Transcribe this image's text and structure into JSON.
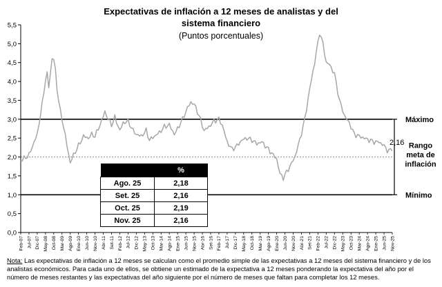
{
  "chart_data": {
    "type": "line",
    "title_line1": "Expectativas de inflación a 12 meses de analistas y del",
    "title_line2": "sistema financiero",
    "subtitle": "(Puntos porcentuales)",
    "ylim": [
      0,
      5.5
    ],
    "y_ticks": [
      "0,0",
      "0,5",
      "1,0",
      "1,5",
      "2,0",
      "2,5",
      "3,0",
      "3,5",
      "4,0",
      "4,5",
      "5,0",
      "5,5"
    ],
    "x_tick_labels": [
      "Feb-07",
      "Jul-07",
      "Dic-07",
      "May-08",
      "Oct-08",
      "Mar-09",
      "Ago-09",
      "Ene-10",
      "Jun-10",
      "Nov-10",
      "Abr-11",
      "Set-11",
      "Feb-12",
      "Jul-12",
      "Dic-12",
      "May-13",
      "Oct-13",
      "Mar-14",
      "Ago-14",
      "Ene-15",
      "Jun-15",
      "Nov-15",
      "Abr-16",
      "Set-16",
      "Feb-17",
      "Jul-17",
      "Dic-17",
      "May-18",
      "Oct-18",
      "Mar-19",
      "Ago-19",
      "Ene-20",
      "Jun-20",
      "Nov-20",
      "Abr-21",
      "Set-21",
      "Feb-22",
      "Jul-22",
      "Dic-22",
      "May-23",
      "Oct-23",
      "Mar-24",
      "Ago-24",
      "Ene-25",
      "Jun-25",
      "Nov-25"
    ],
    "series": [
      {
        "name": "Expectativa de inflación a 12 meses",
        "keypoints": [
          [
            "Feb-07",
            1.9
          ],
          [
            "Jul-07",
            2.05
          ],
          [
            "Dic-07",
            2.6
          ],
          [
            "Mar-08",
            3.4
          ],
          [
            "May-08",
            4.05
          ],
          [
            "Jun-08",
            4.2
          ],
          [
            "Jul-08",
            3.85
          ],
          [
            "Set-08",
            4.6
          ],
          [
            "Oct-08",
            4.6
          ],
          [
            "Nov-08",
            4.3
          ],
          [
            "Dic-08",
            3.8
          ],
          [
            "Feb-09",
            3.2
          ],
          [
            "Abr-09",
            2.8
          ],
          [
            "Jun-09",
            2.3
          ],
          [
            "Ago-09",
            1.85
          ],
          [
            "Oct-09",
            2.05
          ],
          [
            "Ene-10",
            2.3
          ],
          [
            "Abr-10",
            2.55
          ],
          [
            "Jul-10",
            2.5
          ],
          [
            "Set-10",
            2.6
          ],
          [
            "Nov-10",
            2.55
          ],
          [
            "Feb-11",
            2.85
          ],
          [
            "May-11",
            3.2
          ],
          [
            "Jul-11",
            3.0
          ],
          [
            "Set-11",
            2.85
          ],
          [
            "Nov-11",
            3.05
          ],
          [
            "Feb-12",
            2.7
          ],
          [
            "Abr-12",
            2.9
          ],
          [
            "Jul-12",
            2.95
          ],
          [
            "Oct-12",
            2.7
          ],
          [
            "Dic-12",
            2.6
          ],
          [
            "Mar-13",
            2.55
          ],
          [
            "Jun-13",
            2.7
          ],
          [
            "Ago-13",
            2.45
          ],
          [
            "Nov-13",
            2.55
          ],
          [
            "Feb-14",
            2.65
          ],
          [
            "May-14",
            2.8
          ],
          [
            "Ago-14",
            2.85
          ],
          [
            "Nov-14",
            2.6
          ],
          [
            "Ene-15",
            2.75
          ],
          [
            "Abr-15",
            3.0
          ],
          [
            "Jul-15",
            3.3
          ],
          [
            "Set-15",
            3.45
          ],
          [
            "Nov-15",
            3.4
          ],
          [
            "Feb-16",
            3.1
          ],
          [
            "May-16",
            2.7
          ],
          [
            "Ago-16",
            2.8
          ],
          [
            "Nov-16",
            2.95
          ],
          [
            "Feb-17",
            3.0
          ],
          [
            "Abr-17",
            2.85
          ],
          [
            "Jul-17",
            2.4
          ],
          [
            "Oct-17",
            2.2
          ],
          [
            "Ene-18",
            2.3
          ],
          [
            "Abr-18",
            2.45
          ],
          [
            "Jul-18",
            2.5
          ],
          [
            "Oct-18",
            2.45
          ],
          [
            "Ene-19",
            2.35
          ],
          [
            "Abr-19",
            2.4
          ],
          [
            "Jul-19",
            2.25
          ],
          [
            "Oct-19",
            2.1
          ],
          [
            "Ene-20",
            1.95
          ],
          [
            "Mar-20",
            1.55
          ],
          [
            "May-20",
            1.45
          ],
          [
            "Jul-20",
            1.6
          ],
          [
            "Set-20",
            1.75
          ],
          [
            "Dic-20",
            2.0
          ],
          [
            "Mar-21",
            2.45
          ],
          [
            "Jun-21",
            3.0
          ],
          [
            "Set-21",
            3.8
          ],
          [
            "Dic-21",
            4.5
          ],
          [
            "Mar-22",
            5.3
          ],
          [
            "May-22",
            5.0
          ],
          [
            "Jul-22",
            4.5
          ],
          [
            "Set-22",
            4.45
          ],
          [
            "Dic-22",
            4.2
          ],
          [
            "Mar-23",
            3.5
          ],
          [
            "Jun-23",
            3.1
          ],
          [
            "Set-23",
            2.9
          ],
          [
            "Dic-23",
            2.6
          ],
          [
            "Mar-24",
            2.55
          ],
          [
            "Jun-24",
            2.5
          ],
          [
            "Set-24",
            2.45
          ],
          [
            "Dic-24",
            2.4
          ],
          [
            "Mar-25",
            2.4
          ],
          [
            "Jun-25",
            2.3
          ],
          [
            "Ago-25",
            2.18
          ],
          [
            "Set-25",
            2.16
          ],
          [
            "Oct-25",
            2.19
          ],
          [
            "Nov-25",
            2.16
          ]
        ]
      }
    ],
    "reference_lines": [
      {
        "label": "Máximo",
        "value": 3.0,
        "style": "solid"
      },
      {
        "label": "Mínimo",
        "value": 1.0,
        "style": "solid"
      },
      {
        "label": "Rango meta de inflación",
        "label_lines": [
          "Rango",
          "meta de",
          "inflación"
        ],
        "value": 2.0,
        "style": "dashed"
      }
    ],
    "last_value_label": "2,16",
    "table": {
      "header": [
        "",
        "%"
      ],
      "rows": [
        [
          "Ago. 25",
          "2,18"
        ],
        [
          "Set. 25",
          "2,16"
        ],
        [
          "Oct. 25",
          "2,19"
        ],
        [
          "Nov. 25",
          "2,16"
        ]
      ]
    }
  },
  "note": {
    "label": "Nota:",
    "text": " Las expectativas de inflación a 12 meses se calculan como el promedio simple de las expectativas a 12 meses del sistema financiero y de los analistas económicos. Para cada uno de ellos, se obtiene un estimado de la expectativa a 12 meses ponderando la expectativa del año por el número de meses restantes y las expectativas del año siguiente por el número de meses que faltan para completar los 12 meses."
  }
}
